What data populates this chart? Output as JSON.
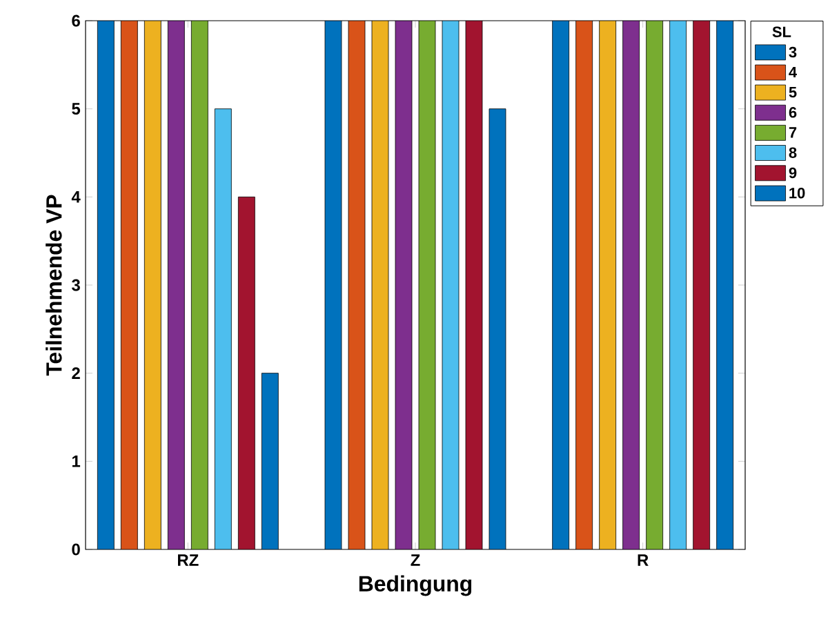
{
  "chart_data": {
    "type": "bar",
    "xlabel": "Bedingung",
    "ylabel": "Teilnehmende VP",
    "legend_title": "SL",
    "legend": "top right",
    "categories": [
      "RZ",
      "Z",
      "R"
    ],
    "ylim": [
      0,
      6
    ],
    "yticks": [
      0,
      1,
      2,
      3,
      4,
      5,
      6
    ],
    "series": [
      {
        "name": "3",
        "color": "#0072bd",
        "values": [
          6,
          6,
          6
        ]
      },
      {
        "name": "4",
        "color": "#d95319",
        "values": [
          6,
          6,
          6
        ]
      },
      {
        "name": "5",
        "color": "#edb120",
        "values": [
          6,
          6,
          6
        ]
      },
      {
        "name": "6",
        "color": "#7e2f8e",
        "values": [
          6,
          6,
          6
        ]
      },
      {
        "name": "7",
        "color": "#77ac30",
        "values": [
          6,
          6,
          6
        ]
      },
      {
        "name": "8",
        "color": "#4dbeee",
        "values": [
          5,
          6,
          6
        ]
      },
      {
        "name": "9",
        "color": "#a2142f",
        "values": [
          4,
          6,
          6
        ]
      },
      {
        "name": "10",
        "color": "#0072bd",
        "values": [
          2,
          5,
          6
        ]
      }
    ]
  }
}
